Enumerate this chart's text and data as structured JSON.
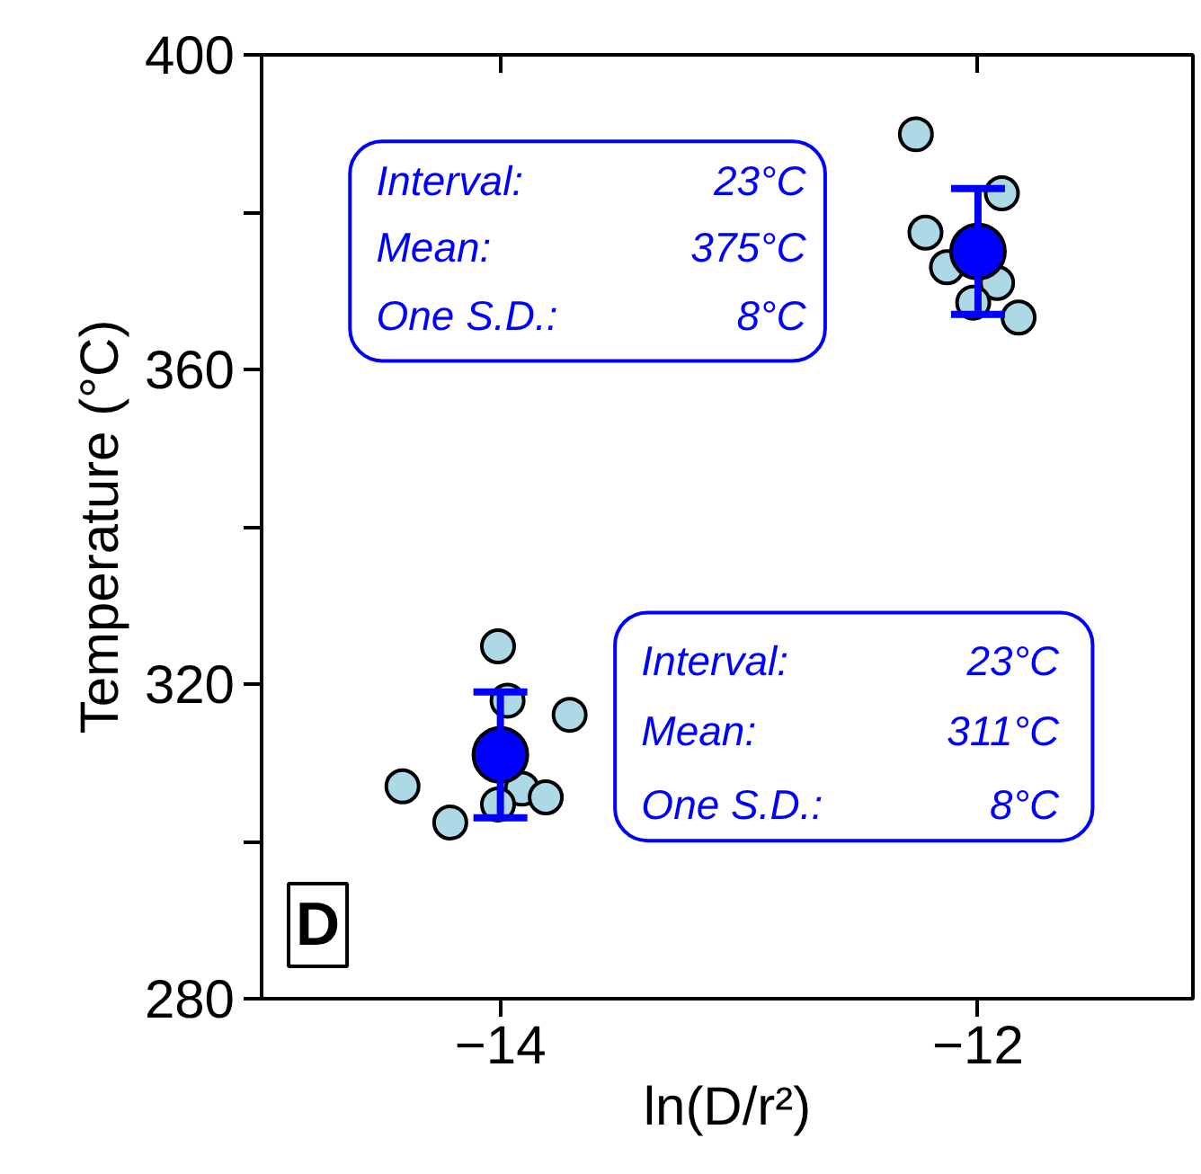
{
  "chart_data": {
    "type": "scatter",
    "xlabel": "ln(D/r²)",
    "ylabel": "Temperature (°C)",
    "xlim": [
      -15.0,
      -11.1
    ],
    "ylim": [
      280,
      400
    ],
    "xticks": [
      {
        "value": -14,
        "label": "−14"
      },
      {
        "value": -12,
        "label": "−12"
      }
    ],
    "yticks": [
      280,
      {
        "value": 300,
        "label": null
      },
      320,
      {
        "value": 340,
        "label": null
      },
      360,
      {
        "value": 380,
        "label": null
      },
      400
    ],
    "grid": false,
    "marker": "circle",
    "series": [
      {
        "color": "#add8e6",
        "x": [
          -14.01,
          -13.97,
          -13.71,
          -14.41,
          -14.21,
          -13.91,
          -13.81,
          -14.01,
          -12.26,
          -11.9,
          -12.22,
          -12.13,
          -11.92,
          -12.02,
          -11.83
        ],
        "values": [
          324.8,
          317.9,
          316.1,
          307.0,
          302.4,
          306.7,
          305.6,
          304.7,
          389.9,
          382.4,
          377.4,
          373.0,
          371.0,
          368.5,
          366.6
        ]
      },
      {
        "color": "#0000ff",
        "x": [
          -14,
          -12
        ],
        "values": [
          311,
          375
        ],
        "errors": [
          8,
          8
        ]
      }
    ],
    "annotations": [
      "Interval:",
      "23°C",
      "Mean:",
      "375°C",
      "One S.D.:",
      "8°C",
      "Interval:",
      "23°C",
      "Mean:",
      "311°C",
      "One S.D.:",
      "8°C",
      "D"
    ]
  }
}
